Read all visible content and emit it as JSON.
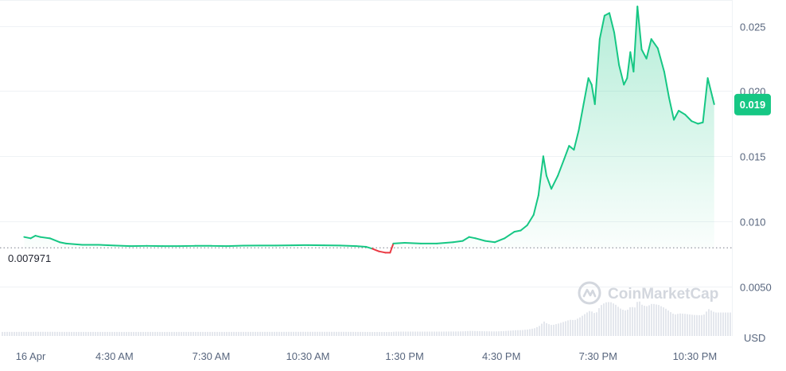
{
  "chart_data": {
    "type": "area",
    "unit_label": "USD",
    "watermark": "CoinMarketCap",
    "reference_value": 0.007971,
    "reference_label": "0.007971",
    "current_value": 0.019,
    "current_label": "0.019",
    "ylim": [
      0.0012,
      0.027
    ],
    "y_ticks": [
      {
        "value": 0.005,
        "label": "0.0050"
      },
      {
        "value": 0.01,
        "label": "0.010"
      },
      {
        "value": 0.015,
        "label": "0.015"
      },
      {
        "value": 0.02,
        "label": "0.020"
      },
      {
        "value": 0.025,
        "label": "0.025"
      }
    ],
    "x_ticks": [
      {
        "hour": 1.9,
        "label": "16 Apr"
      },
      {
        "hour": 4.5,
        "label": "4:30 AM"
      },
      {
        "hour": 7.5,
        "label": "7:30 AM"
      },
      {
        "hour": 10.5,
        "label": "10:30 AM"
      },
      {
        "hour": 13.5,
        "label": "1:30 PM"
      },
      {
        "hour": 16.5,
        "label": "4:30 PM"
      },
      {
        "hour": 19.5,
        "label": "7:30 PM"
      },
      {
        "hour": 22.5,
        "label": "10:30 PM"
      }
    ],
    "xlim": [
      0.95,
      23.65
    ],
    "series": [
      {
        "points": [
          [
            1.7,
            0.0088
          ],
          [
            1.9,
            0.0087
          ],
          [
            2.05,
            0.0089
          ],
          [
            2.2,
            0.0088
          ],
          [
            2.5,
            0.0087
          ],
          [
            2.8,
            0.0084
          ],
          [
            3.0,
            0.0083
          ],
          [
            3.5,
            0.0082
          ],
          [
            4.0,
            0.0082
          ],
          [
            4.5,
            0.00815
          ],
          [
            5.0,
            0.0081
          ],
          [
            5.5,
            0.00812
          ],
          [
            6.0,
            0.0081
          ],
          [
            6.5,
            0.0081
          ],
          [
            7.0,
            0.00812
          ],
          [
            7.5,
            0.00812
          ],
          [
            8.0,
            0.0081
          ],
          [
            8.5,
            0.00814
          ],
          [
            9.0,
            0.00815
          ],
          [
            9.5,
            0.00815
          ],
          [
            10.0,
            0.00816
          ],
          [
            10.5,
            0.00818
          ],
          [
            11.0,
            0.00816
          ],
          [
            11.5,
            0.00815
          ],
          [
            12.0,
            0.0081
          ],
          [
            12.3,
            0.00805
          ],
          [
            12.5,
            0.0079
          ],
          [
            12.7,
            0.0077
          ],
          [
            12.9,
            0.0076
          ],
          [
            13.05,
            0.0076
          ],
          [
            13.15,
            0.0083
          ],
          [
            13.5,
            0.00835
          ],
          [
            14.0,
            0.0083
          ],
          [
            14.5,
            0.0083
          ],
          [
            15.0,
            0.0084
          ],
          [
            15.3,
            0.0085
          ],
          [
            15.5,
            0.0088
          ],
          [
            15.7,
            0.0087
          ],
          [
            16.0,
            0.0085
          ],
          [
            16.3,
            0.0084
          ],
          [
            16.6,
            0.0087
          ],
          [
            16.9,
            0.0092
          ],
          [
            17.1,
            0.0093
          ],
          [
            17.3,
            0.0097
          ],
          [
            17.5,
            0.0105
          ],
          [
            17.65,
            0.012
          ],
          [
            17.8,
            0.015
          ],
          [
            17.9,
            0.0135
          ],
          [
            18.05,
            0.0125
          ],
          [
            18.25,
            0.0135
          ],
          [
            18.45,
            0.0148
          ],
          [
            18.6,
            0.0158
          ],
          [
            18.75,
            0.0155
          ],
          [
            18.9,
            0.017
          ],
          [
            19.05,
            0.019
          ],
          [
            19.2,
            0.021
          ],
          [
            19.3,
            0.0205
          ],
          [
            19.4,
            0.019
          ],
          [
            19.55,
            0.024
          ],
          [
            19.7,
            0.0258
          ],
          [
            19.85,
            0.026
          ],
          [
            20.0,
            0.0245
          ],
          [
            20.15,
            0.022
          ],
          [
            20.3,
            0.0205
          ],
          [
            20.4,
            0.021
          ],
          [
            20.5,
            0.023
          ],
          [
            20.6,
            0.0215
          ],
          [
            20.72,
            0.0265
          ],
          [
            20.85,
            0.0232
          ],
          [
            21.0,
            0.0225
          ],
          [
            21.15,
            0.024
          ],
          [
            21.35,
            0.0233
          ],
          [
            21.55,
            0.0215
          ],
          [
            21.7,
            0.0195
          ],
          [
            21.85,
            0.0178
          ],
          [
            22.0,
            0.0185
          ],
          [
            22.2,
            0.0182
          ],
          [
            22.4,
            0.0177
          ],
          [
            22.6,
            0.0175
          ],
          [
            22.75,
            0.0176
          ],
          [
            22.9,
            0.021
          ],
          [
            23.05,
            0.0195
          ],
          [
            23.1,
            0.019
          ]
        ]
      }
    ]
  }
}
